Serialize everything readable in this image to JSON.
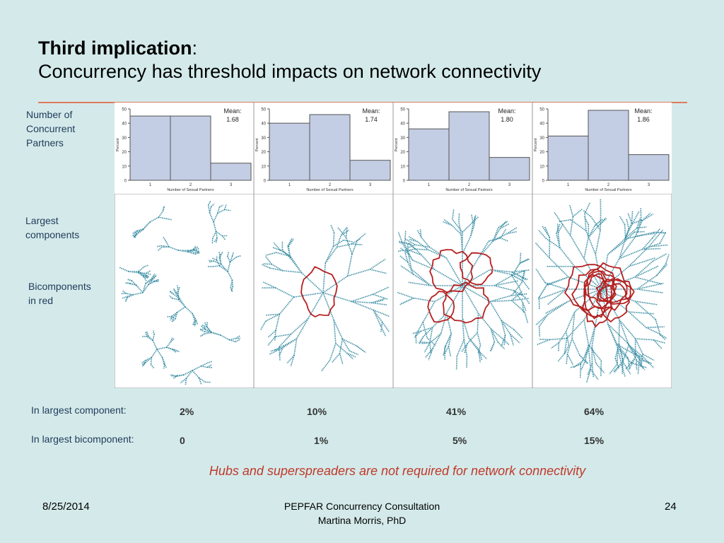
{
  "title": {
    "line1_bold": "Third implication",
    "line1_suffix": ":",
    "line2": "Concurrency has threshold impacts on network connectivity"
  },
  "side_labels": {
    "concurrent": [
      "Number of",
      "Concurrent",
      "Partners"
    ],
    "largest": [
      "Largest",
      "components"
    ],
    "bicomponents": [
      "Bicomponents",
      "in red"
    ]
  },
  "chart_data": [
    {
      "type": "bar",
      "categories": [
        "1",
        "2",
        "3"
      ],
      "values": [
        45,
        45,
        12
      ],
      "xlabel": "Number of Sexual Partners",
      "ylabel": "Percent",
      "yticks": [
        0,
        10,
        20,
        30,
        40,
        50
      ],
      "ylim": [
        0,
        50
      ],
      "annotation": [
        "Mean:",
        "1.68"
      ]
    },
    {
      "type": "bar",
      "categories": [
        "1",
        "2",
        "3"
      ],
      "values": [
        40,
        46,
        14
      ],
      "xlabel": "Number of Sexual Partners",
      "ylabel": "Percent",
      "yticks": [
        0,
        10,
        20,
        30,
        40,
        50
      ],
      "ylim": [
        0,
        50
      ],
      "annotation": [
        "Mean:",
        "1.74"
      ]
    },
    {
      "type": "bar",
      "categories": [
        "1",
        "2",
        "3"
      ],
      "values": [
        36,
        48,
        16
      ],
      "xlabel": "Number of Sexual Partners",
      "ylabel": "Percent",
      "yticks": [
        0,
        10,
        20,
        30,
        40,
        50
      ],
      "ylim": [
        0,
        50
      ],
      "annotation": [
        "Mean:",
        "1.80"
      ]
    },
    {
      "type": "bar",
      "categories": [
        "1",
        "2",
        "3"
      ],
      "values": [
        31,
        49,
        18
      ],
      "xlabel": "Number of Sexual Partners",
      "ylabel": "Percent",
      "yticks": [
        0,
        10,
        20,
        30,
        40,
        50
      ],
      "ylim": [
        0,
        50
      ],
      "annotation": [
        "Mean:",
        "1.86"
      ]
    }
  ],
  "colors": {
    "bar_fill": "#c3cde3",
    "bar_stroke": "#555555",
    "network_edge": "#3d8fa5",
    "network_node": "#1f6b80",
    "bicomponent": "#b52020",
    "note": "#c0392b"
  },
  "rows": {
    "component": {
      "label": "In largest  component:",
      "values": [
        "2%",
        "10%",
        "41%",
        "64%"
      ]
    },
    "bicomponent": {
      "label": "In largest bicomponent:",
      "values": [
        "0",
        "1%",
        "5%",
        "15%"
      ]
    }
  },
  "note": "Hubs and superspreaders are not required for network connectivity",
  "footer": {
    "date": "8/25/2014",
    "center_line1": "PEPFAR Concurrency Consultation",
    "center_line2": "Martina Morris, PhD",
    "page": "24"
  }
}
